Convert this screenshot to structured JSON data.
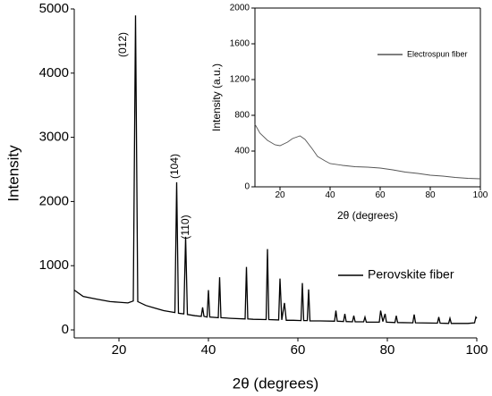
{
  "chart_data": [
    {
      "type": "line",
      "xlabel": "2θ (degrees)",
      "ylabel": "Intensity",
      "xlim": [
        10,
        100
      ],
      "xticks": [
        20,
        40,
        60,
        80,
        100
      ],
      "ylim": [
        -125,
        5000
      ],
      "yticks": [
        0,
        1000,
        2000,
        3000,
        4000,
        5000
      ],
      "annotations": [
        "(012)",
        "(104)",
        "(110)"
      ],
      "x": [
        10,
        12,
        15,
        18,
        20,
        22,
        23.2,
        23.7,
        24.2,
        26,
        28,
        30,
        32.5,
        32.9,
        33.3,
        34.5,
        34.9,
        35.3,
        37,
        38.4,
        38.7,
        39,
        39.7,
        40,
        40.3,
        42.2,
        42.5,
        42.8,
        45,
        48.2,
        48.5,
        48.8,
        50,
        52.9,
        53.2,
        53.5,
        55.7,
        56,
        56.4,
        57,
        57.4,
        59,
        60.7,
        61,
        61.3,
        62.1,
        62.4,
        62.7,
        65,
        68.2,
        68.5,
        68.8,
        70.2,
        70.5,
        70.8,
        72.2,
        72.5,
        72.8,
        74.7,
        75,
        75.3,
        78.2,
        78.5,
        79,
        79.5,
        79.8,
        81.7,
        82,
        82.3,
        85.7,
        86,
        86.3,
        91.2,
        91.5,
        91.8,
        93.7,
        94,
        94.3,
        98,
        99.5,
        99.8,
        100
      ],
      "series": [
        {
          "name": "Perovskite fiber",
          "color": "#000000",
          "values": [
            620,
            520,
            480,
            440,
            430,
            420,
            450,
            4900,
            440,
            380,
            340,
            300,
            270,
            2300,
            260,
            250,
            1450,
            240,
            220,
            210,
            350,
            210,
            200,
            620,
            200,
            190,
            820,
            190,
            180,
            170,
            980,
            170,
            165,
            160,
            1260,
            160,
            155,
            800,
            155,
            420,
            150,
            150,
            145,
            730,
            145,
            145,
            630,
            140,
            140,
            135,
            300,
            135,
            130,
            250,
            130,
            125,
            220,
            125,
            125,
            200,
            120,
            120,
            300,
            130,
            250,
            120,
            115,
            220,
            115,
            110,
            240,
            110,
            105,
            200,
            105,
            100,
            180,
            100,
            100,
            110,
            200,
            180
          ]
        }
      ]
    },
    {
      "type": "line",
      "xlabel": "2θ (degrees)",
      "ylabel": "Intensity (a.u.)",
      "xlim": [
        10,
        100
      ],
      "xticks": [
        20,
        40,
        60,
        80,
        100
      ],
      "ylim": [
        0,
        2000
      ],
      "yticks": [
        0,
        400,
        800,
        1200,
        1600,
        2000
      ],
      "x": [
        10,
        12,
        15,
        18,
        20,
        23,
        25,
        28,
        30,
        33,
        35,
        38,
        40,
        45,
        50,
        55,
        60,
        65,
        70,
        75,
        80,
        85,
        90,
        95,
        100
      ],
      "series": [
        {
          "name": "Electrospun fiber",
          "color": "#555555",
          "values": [
            700,
            600,
            520,
            470,
            460,
            500,
            540,
            570,
            530,
            420,
            340,
            290,
            260,
            240,
            225,
            220,
            210,
            190,
            165,
            150,
            130,
            120,
            105,
            95,
            90
          ]
        }
      ]
    }
  ]
}
